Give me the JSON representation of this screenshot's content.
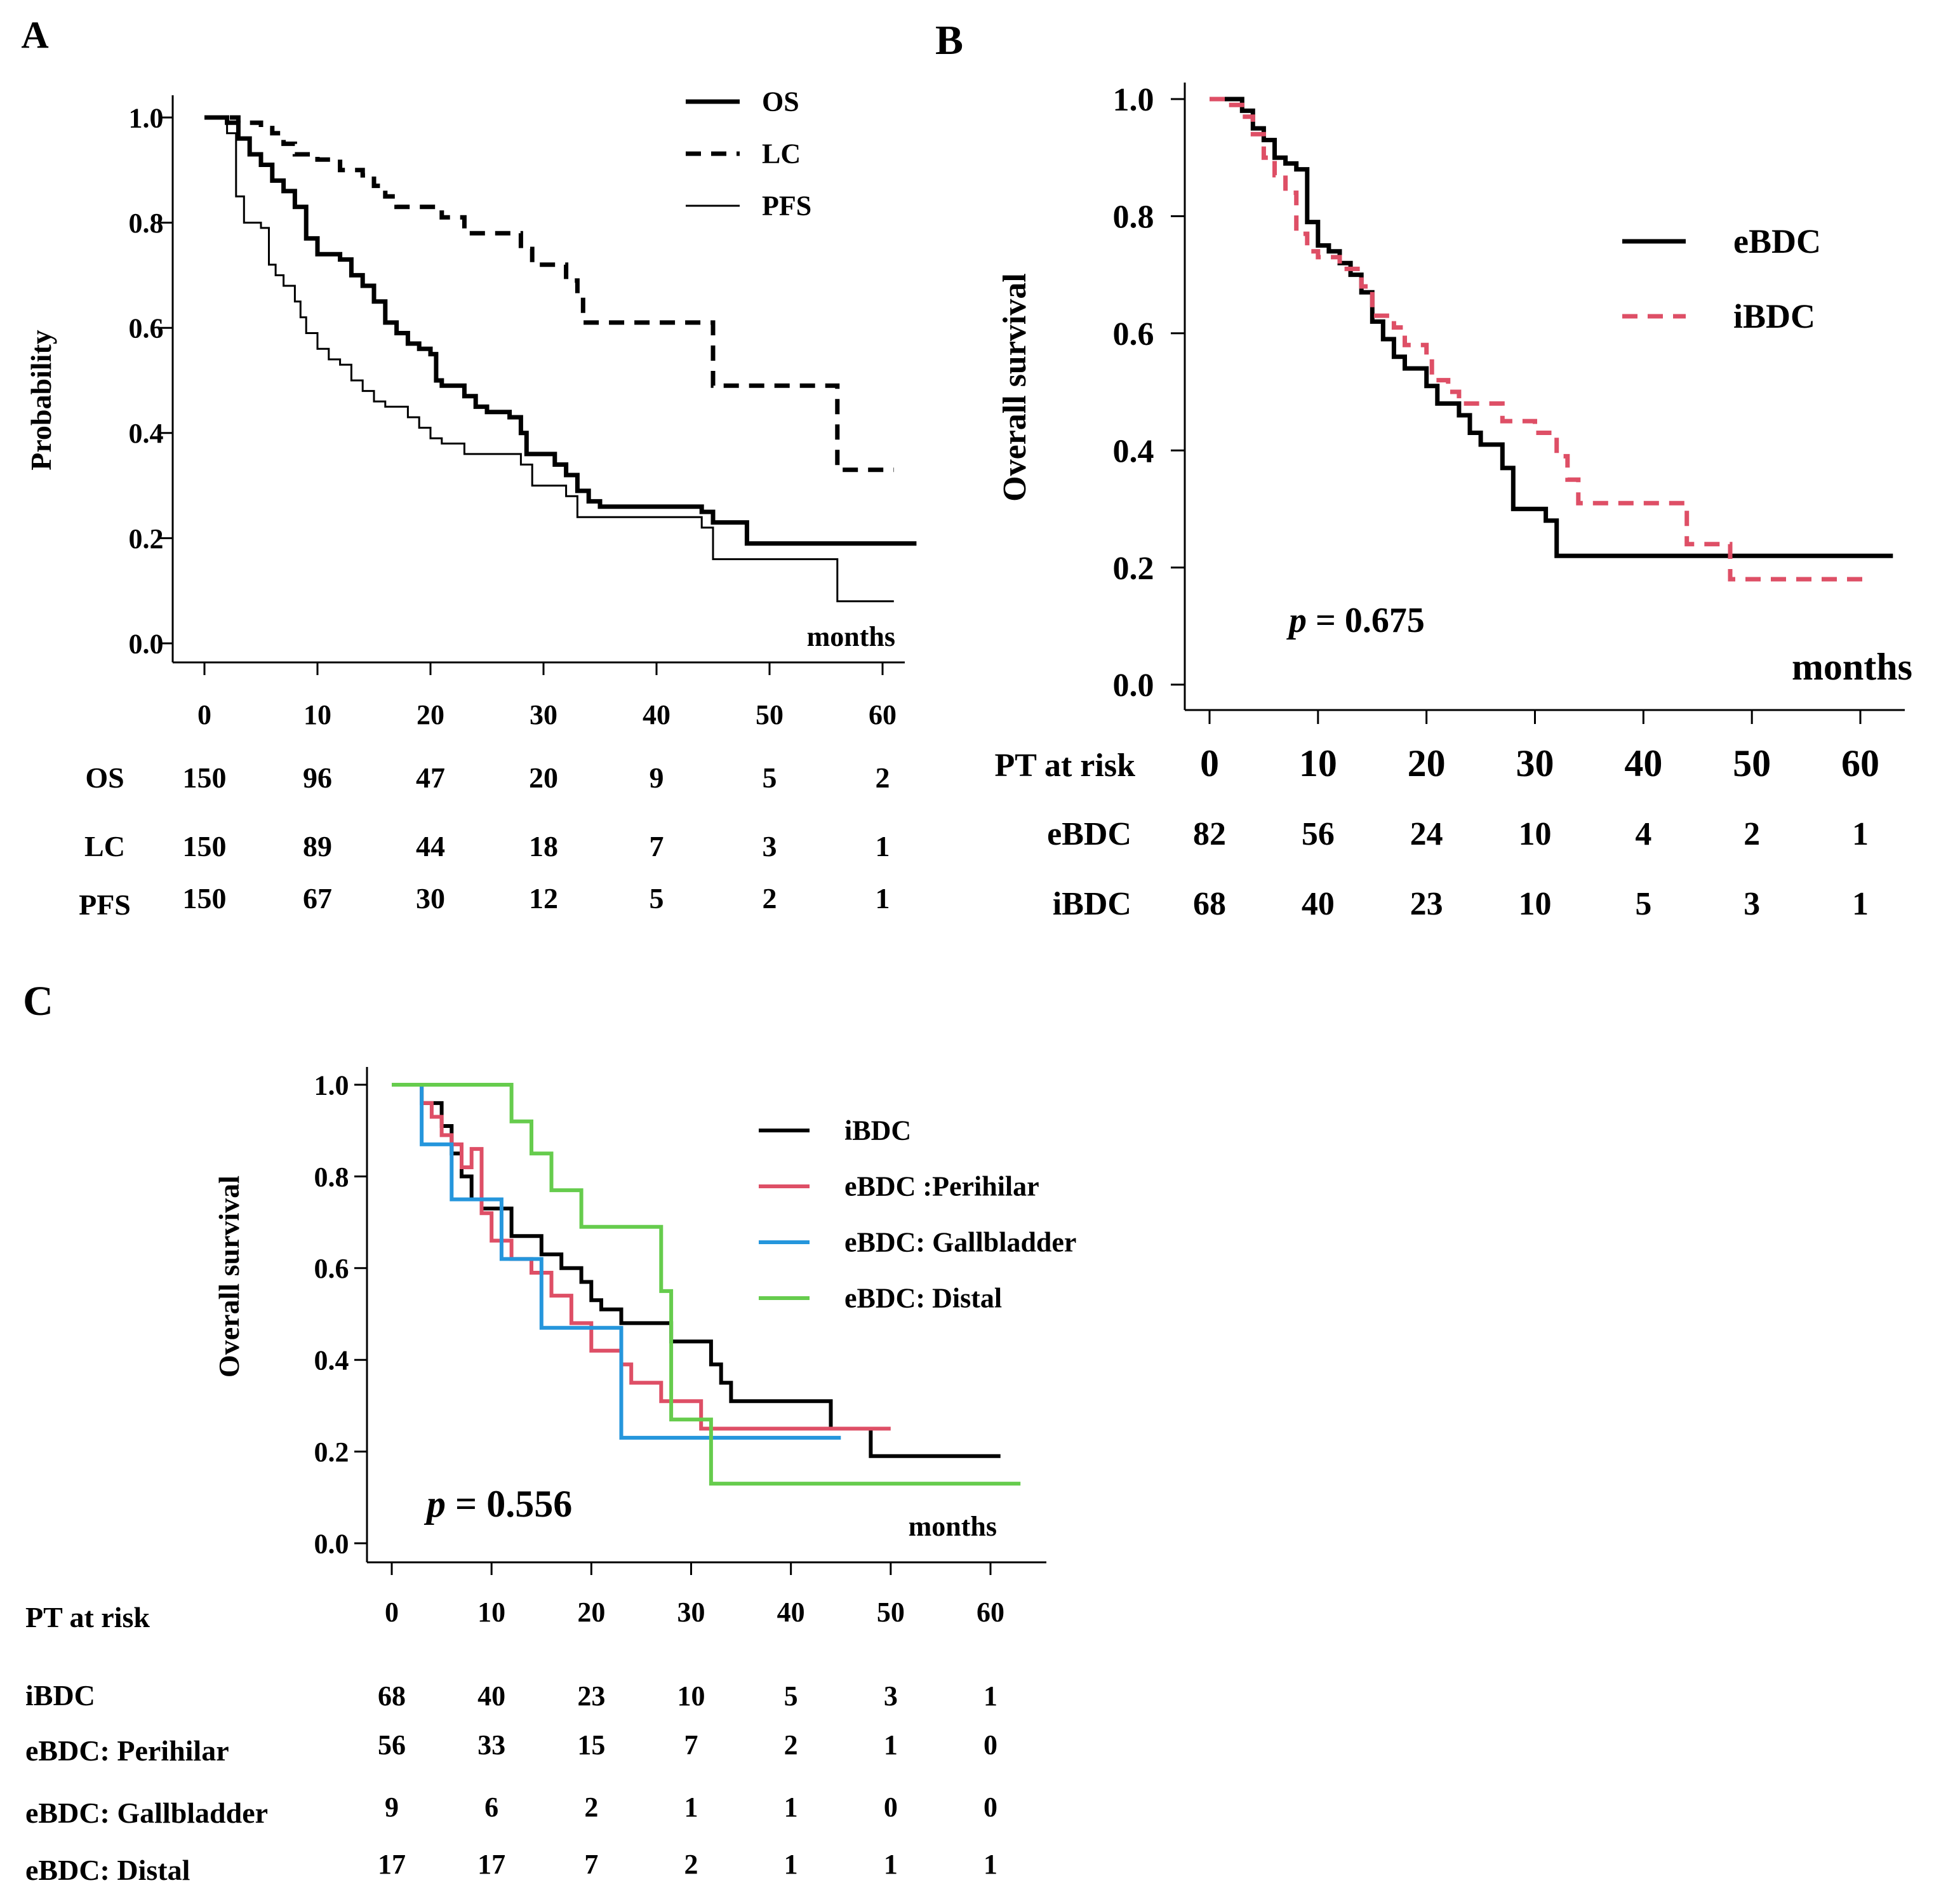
{
  "colors": {
    "black": "#000000",
    "red": "#de4f66",
    "blue": "#2596dc",
    "green": "#66cc4d"
  },
  "chart_data": [
    {
      "id": "A",
      "type": "line",
      "panel_label": "A",
      "ylabel": "Probability",
      "xlabel": "months",
      "xlim": [
        0,
        65
      ],
      "ylim": [
        0,
        1
      ],
      "xticks": [
        "0",
        "10",
        "20",
        "30",
        "40",
        "50",
        "60"
      ],
      "yticks": [
        "0.0",
        "0.2",
        "0.4",
        "0.6",
        "0.8",
        "1.0"
      ],
      "legend_position": "top-right",
      "series": [
        {
          "name": "OS",
          "style": "thick-solid",
          "color_key": "black",
          "points": [
            [
              0,
              1
            ],
            [
              2,
              0.99
            ],
            [
              3,
              0.96
            ],
            [
              4,
              0.93
            ],
            [
              5,
              0.91
            ],
            [
              6,
              0.88
            ],
            [
              7,
              0.86
            ],
            [
              8,
              0.83
            ],
            [
              9,
              0.77
            ],
            [
              10,
              0.74
            ],
            [
              12,
              0.73
            ],
            [
              13,
              0.7
            ],
            [
              14,
              0.68
            ],
            [
              15,
              0.65
            ],
            [
              16,
              0.61
            ],
            [
              17,
              0.59
            ],
            [
              18,
              0.57
            ],
            [
              19,
              0.56
            ],
            [
              20,
              0.55
            ],
            [
              20.5,
              0.5
            ],
            [
              21,
              0.49
            ],
            [
              23,
              0.47
            ],
            [
              24,
              0.45
            ],
            [
              25,
              0.44
            ],
            [
              27,
              0.43
            ],
            [
              28,
              0.4
            ],
            [
              28.5,
              0.36
            ],
            [
              31,
              0.34
            ],
            [
              32,
              0.32
            ],
            [
              33,
              0.29
            ],
            [
              34,
              0.27
            ],
            [
              35,
              0.26
            ],
            [
              44,
              0.25
            ],
            [
              45,
              0.23
            ],
            [
              48,
              0.19
            ],
            [
              63,
              0.19
            ]
          ]
        },
        {
          "name": "LC",
          "style": "thick-dashed",
          "color_key": "black",
          "points": [
            [
              0,
              1
            ],
            [
              3,
              0.99
            ],
            [
              5,
              0.98
            ],
            [
              6,
              0.97
            ],
            [
              7,
              0.95
            ],
            [
              8,
              0.93
            ],
            [
              10,
              0.92
            ],
            [
              12,
              0.9
            ],
            [
              14,
              0.89
            ],
            [
              15,
              0.87
            ],
            [
              16,
              0.85
            ],
            [
              17,
              0.83
            ],
            [
              21,
              0.81
            ],
            [
              23,
              0.78
            ],
            [
              28,
              0.75
            ],
            [
              29,
              0.72
            ],
            [
              32,
              0.69
            ],
            [
              33,
              0.66
            ],
            [
              33.5,
              0.61
            ],
            [
              45,
              0.49
            ],
            [
              56,
              0.33
            ],
            [
              61,
              0.33
            ]
          ]
        },
        {
          "name": "PFS",
          "style": "thin-solid",
          "color_key": "black",
          "points": [
            [
              0,
              1
            ],
            [
              2,
              0.97
            ],
            [
              2.8,
              0.85
            ],
            [
              3.5,
              0.8
            ],
            [
              5,
              0.79
            ],
            [
              5.7,
              0.72
            ],
            [
              6.3,
              0.7
            ],
            [
              7,
              0.68
            ],
            [
              8,
              0.65
            ],
            [
              8.5,
              0.62
            ],
            [
              9,
              0.59
            ],
            [
              10,
              0.56
            ],
            [
              11,
              0.54
            ],
            [
              12,
              0.53
            ],
            [
              13,
              0.5
            ],
            [
              14,
              0.48
            ],
            [
              15,
              0.46
            ],
            [
              16,
              0.45
            ],
            [
              18,
              0.43
            ],
            [
              19,
              0.41
            ],
            [
              20,
              0.39
            ],
            [
              21,
              0.38
            ],
            [
              23,
              0.36
            ],
            [
              28,
              0.34
            ],
            [
              29,
              0.3
            ],
            [
              32,
              0.28
            ],
            [
              33,
              0.24
            ],
            [
              38,
              0.24
            ],
            [
              44,
              0.22
            ],
            [
              45,
              0.16
            ],
            [
              56,
              0.08
            ],
            [
              61,
              0.08
            ]
          ]
        }
      ],
      "risk_table": {
        "header": "",
        "times": [
          "0",
          "10",
          "20",
          "30",
          "40",
          "50",
          "60"
        ],
        "rows": [
          {
            "label": "OS",
            "values": [
              "150",
              "96",
              "47",
              "20",
              "9",
              "5",
              "2"
            ]
          },
          {
            "label": "LC",
            "values": [
              "150",
              "89",
              "44",
              "18",
              "7",
              "3",
              "1"
            ]
          },
          {
            "label": "PFS",
            "values": [
              "150",
              "67",
              "30",
              "12",
              "5",
              "2",
              "1"
            ]
          }
        ]
      }
    },
    {
      "id": "B",
      "type": "line",
      "panel_label": "B",
      "ylabel": "Overall survival",
      "xlabel": "months",
      "xlim": [
        0,
        65
      ],
      "ylim": [
        0,
        1
      ],
      "xticks": [
        "0",
        "10",
        "20",
        "30",
        "40",
        "50",
        "60"
      ],
      "yticks": [
        "0.0",
        "0.2",
        "0.4",
        "0.6",
        "0.8",
        "1.0"
      ],
      "pvalue": {
        "prefix": "p",
        "text": " = 0.675"
      },
      "legend_position": "top-right",
      "series": [
        {
          "name": "eBDC",
          "style": "thick-solid",
          "color_key": "black",
          "points": [
            [
              0,
              1
            ],
            [
              3,
              0.98
            ],
            [
              4,
              0.95
            ],
            [
              5,
              0.93
            ],
            [
              6,
              0.9
            ],
            [
              7,
              0.89
            ],
            [
              8,
              0.88
            ],
            [
              9,
              0.79
            ],
            [
              10,
              0.75
            ],
            [
              11,
              0.74
            ],
            [
              12,
              0.72
            ],
            [
              13,
              0.7
            ],
            [
              14,
              0.67
            ],
            [
              15,
              0.62
            ],
            [
              16,
              0.59
            ],
            [
              17,
              0.56
            ],
            [
              18,
              0.54
            ],
            [
              20,
              0.51
            ],
            [
              21,
              0.48
            ],
            [
              23,
              0.46
            ],
            [
              24,
              0.43
            ],
            [
              25,
              0.41
            ],
            [
              27,
              0.37
            ],
            [
              28,
              0.3
            ],
            [
              31,
              0.28
            ],
            [
              32,
              0.22
            ],
            [
              63,
              0.22
            ]
          ]
        },
        {
          "name": "iBDC",
          "style": "thick-dashed",
          "color_key": "red",
          "points": [
            [
              0,
              1
            ],
            [
              2,
              0.99
            ],
            [
              3,
              0.97
            ],
            [
              4,
              0.94
            ],
            [
              5,
              0.9
            ],
            [
              6,
              0.87
            ],
            [
              7,
              0.84
            ],
            [
              8,
              0.77
            ],
            [
              9,
              0.74
            ],
            [
              10,
              0.73
            ],
            [
              12,
              0.71
            ],
            [
              14,
              0.68
            ],
            [
              15,
              0.63
            ],
            [
              17,
              0.61
            ],
            [
              18,
              0.58
            ],
            [
              20,
              0.56
            ],
            [
              20.5,
              0.52
            ],
            [
              22,
              0.5
            ],
            [
              23,
              0.48
            ],
            [
              27,
              0.45
            ],
            [
              30,
              0.43
            ],
            [
              32,
              0.39
            ],
            [
              33,
              0.35
            ],
            [
              34,
              0.31
            ],
            [
              44,
              0.24
            ],
            [
              48,
              0.18
            ],
            [
              61,
              0.18
            ]
          ]
        }
      ],
      "risk_table": {
        "header": "PT at risk",
        "times": [
          "0",
          "10",
          "20",
          "30",
          "40",
          "50",
          "60"
        ],
        "rows": [
          {
            "label": "eBDC",
            "values": [
              "82",
              "56",
              "24",
              "10",
              "4",
              "2",
              "1"
            ]
          },
          {
            "label": "iBDC",
            "values": [
              "68",
              "40",
              "23",
              "10",
              "5",
              "3",
              "1"
            ]
          }
        ]
      }
    },
    {
      "id": "C",
      "type": "line",
      "panel_label": "C",
      "ylabel": "Overall survival",
      "xlabel": "months",
      "xlim": [
        0,
        65
      ],
      "ylim": [
        0,
        1
      ],
      "xticks": [
        "0",
        "10",
        "20",
        "30",
        "40",
        "50",
        "60"
      ],
      "yticks": [
        "0.0",
        "0.2",
        "0.4",
        "0.6",
        "0.8",
        "1.0"
      ],
      "pvalue": {
        "prefix": "p",
        "text": " = 0.556"
      },
      "legend_position": "top-right",
      "series": [
        {
          "name": "iBDC",
          "style": "solid",
          "color_key": "black",
          "points": [
            [
              0,
              1
            ],
            [
              3,
              0.96
            ],
            [
              5,
              0.91
            ],
            [
              6,
              0.85
            ],
            [
              7,
              0.8
            ],
            [
              8,
              0.75
            ],
            [
              9,
              0.73
            ],
            [
              12,
              0.67
            ],
            [
              15,
              0.63
            ],
            [
              17,
              0.6
            ],
            [
              19,
              0.57
            ],
            [
              20,
              0.53
            ],
            [
              21,
              0.51
            ],
            [
              23,
              0.48
            ],
            [
              28,
              0.44
            ],
            [
              32,
              0.39
            ],
            [
              33,
              0.35
            ],
            [
              34,
              0.31
            ],
            [
              44,
              0.25
            ],
            [
              48,
              0.19
            ],
            [
              61,
              0.19
            ]
          ]
        },
        {
          "name": "eBDC :Perihilar",
          "style": "solid",
          "color_key": "red",
          "points": [
            [
              0,
              1
            ],
            [
              3,
              0.96
            ],
            [
              4,
              0.93
            ],
            [
              5,
              0.89
            ],
            [
              6,
              0.87
            ],
            [
              7,
              0.82
            ],
            [
              8,
              0.86
            ],
            [
              9,
              0.72
            ],
            [
              10,
              0.66
            ],
            [
              12,
              0.62
            ],
            [
              14,
              0.59
            ],
            [
              16,
              0.54
            ],
            [
              18,
              0.48
            ],
            [
              20,
              0.42
            ],
            [
              23,
              0.39
            ],
            [
              24,
              0.35
            ],
            [
              27,
              0.31
            ],
            [
              31,
              0.25
            ],
            [
              50,
              0.25
            ]
          ]
        },
        {
          "name": "eBDC: Gallbladder",
          "style": "solid",
          "color_key": "blue",
          "points": [
            [
              0,
              1
            ],
            [
              3,
              0.87
            ],
            [
              6,
              0.75
            ],
            [
              11,
              0.62
            ],
            [
              15,
              0.47
            ],
            [
              23,
              0.23
            ],
            [
              45,
              0.23
            ]
          ]
        },
        {
          "name": "eBDC: Distal",
          "style": "solid",
          "color_key": "green",
          "points": [
            [
              0,
              1
            ],
            [
              12,
              0.92
            ],
            [
              14,
              0.85
            ],
            [
              16,
              0.77
            ],
            [
              19,
              0.69
            ],
            [
              27,
              0.55
            ],
            [
              28,
              0.27
            ],
            [
              32,
              0.13
            ],
            [
              63,
              0.13
            ]
          ]
        }
      ],
      "risk_table": {
        "header": "PT at risk",
        "times": [
          "0",
          "10",
          "20",
          "30",
          "40",
          "50",
          "60"
        ],
        "rows": [
          {
            "label": "iBDC",
            "values": [
              "68",
              "40",
              "23",
              "10",
              "5",
              "3",
              "1"
            ]
          },
          {
            "label": "eBDC: Perihilar",
            "values": [
              "56",
              "33",
              "15",
              "7",
              "2",
              "1",
              "0"
            ]
          },
          {
            "label": "eBDC: Gallbladder",
            "values": [
              "9",
              "6",
              "2",
              "1",
              "1",
              "0",
              "0"
            ]
          },
          {
            "label": "eBDC: Distal",
            "values": [
              "17",
              "17",
              "7",
              "2",
              "1",
              "1",
              "1"
            ]
          }
        ]
      }
    }
  ]
}
